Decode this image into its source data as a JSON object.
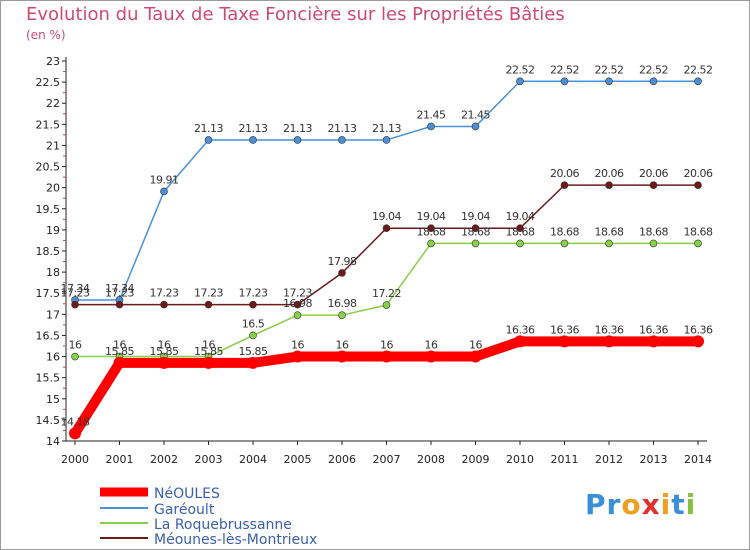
{
  "chart_data": {
    "type": "line",
    "title": "Evolution du Taux de Taxe Foncière sur les Propriétés Bâties",
    "unit_label": "(en %)",
    "x": [
      "2000",
      "2001",
      "2002",
      "2003",
      "2004",
      "2005",
      "2006",
      "2007",
      "2008",
      "2009",
      "2010",
      "2011",
      "2012",
      "2013",
      "2014"
    ],
    "ylim": [
      14,
      23
    ],
    "yticks": [
      "14",
      "14.5",
      "15",
      "15.5",
      "16",
      "16.5",
      "17",
      "17.5",
      "18",
      "18.5",
      "19",
      "19.5",
      "20",
      "20.5",
      "21",
      "21.5",
      "22",
      "22.5",
      "23"
    ],
    "grid": false,
    "series": [
      {
        "name": "NéOULES",
        "color": "#ff0000",
        "values": [
          14.18,
          15.85,
          15.85,
          15.85,
          15.85,
          16,
          16,
          16,
          16,
          16,
          16.36,
          16.36,
          16.36,
          16.36,
          16.36
        ],
        "labels": [
          "14.18",
          "15.85",
          "15.85",
          "15.85",
          "15.85",
          "16",
          "16",
          "16",
          "16",
          "16",
          "16.36",
          "16.36",
          "16.36",
          "16.36",
          "16.36"
        ]
      },
      {
        "name": "Garéoult",
        "color": "#4a90d9",
        "values": [
          17.34,
          17.34,
          19.91,
          21.13,
          21.13,
          21.13,
          21.13,
          21.13,
          21.45,
          21.45,
          22.52,
          22.52,
          22.52,
          22.52,
          22.52
        ],
        "labels": [
          "17.34",
          "17.34",
          "19.91",
          "21.13",
          "21.13",
          "21.13",
          "21.13",
          "21.13",
          "21.45",
          "21.45",
          "22.52",
          "22.52",
          "22.52",
          "22.52",
          "22.52"
        ]
      },
      {
        "name": "La Roquebrussanne",
        "color": "#88d048",
        "values": [
          16,
          16,
          16,
          16,
          16.5,
          16.98,
          16.98,
          17.22,
          18.68,
          18.68,
          18.68,
          18.68,
          18.68,
          18.68,
          18.68
        ],
        "labels": [
          "16",
          "16",
          "16",
          "16",
          "16.5",
          "16.98",
          "16.98",
          "17.22",
          "18.68",
          "18.68",
          "18.68",
          "18.68",
          "18.68",
          "18.68",
          "18.68"
        ]
      },
      {
        "name": "Méounes-lès-Montrieux",
        "color": "#6e1a1a",
        "values": [
          17.23,
          17.23,
          17.23,
          17.23,
          17.23,
          17.23,
          17.98,
          19.04,
          19.04,
          19.04,
          19.04,
          20.06,
          20.06,
          20.06,
          20.06
        ],
        "labels": [
          "17.23",
          "17.23",
          "17.23",
          "17.23",
          "17.23",
          "17.23",
          "17.98",
          "19.04",
          "19.04",
          "19.04",
          "19.04",
          "20.06",
          "20.06",
          "20.06",
          "20.06"
        ]
      }
    ]
  },
  "logo": {
    "letters": [
      "P",
      "r",
      "o",
      "x",
      "i",
      "t",
      "i"
    ],
    "colors": [
      "#3a8fd8",
      "#3a8fd8",
      "#f0a020",
      "#e03030",
      "#f0a020",
      "#3a8fd8",
      "#88c040"
    ]
  }
}
